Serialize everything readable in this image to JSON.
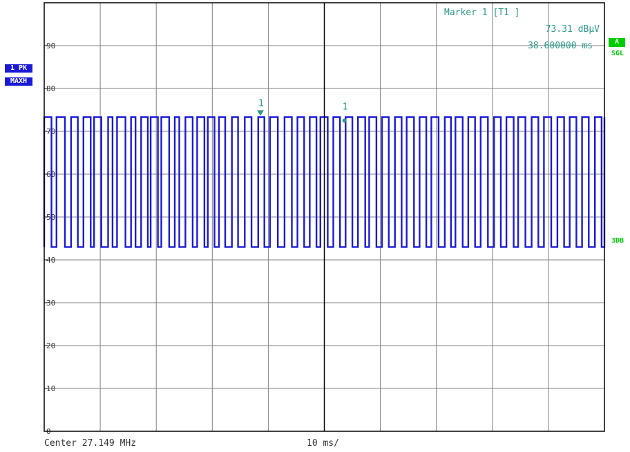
{
  "chart_data": {
    "type": "line",
    "title": "",
    "xlabel": "",
    "ylabel": "",
    "xlim": [
      0,
      100
    ],
    "ylim": [
      0,
      100
    ],
    "y_ticks": [
      0,
      10,
      20,
      30,
      40,
      50,
      60,
      70,
      80,
      90
    ],
    "y_tick_labels": [
      "0",
      "10",
      "20",
      "30",
      "40",
      "50",
      "60",
      "70",
      "80",
      "90"
    ],
    "grid": true,
    "x_units": "ms",
    "y_units": "dBµV",
    "series": [
      {
        "signal": "pulsed (on/off keyed) trace",
        "high_level": 73.3,
        "low_level": 43,
        "edges_ms": [
          0,
          1.3,
          2.2,
          3.7,
          4.8,
          6,
          7,
          8.3,
          8.9,
          10.2,
          11.4,
          12.2,
          13,
          14.5,
          15.5,
          16.3,
          17.3,
          18.5,
          19,
          20.3,
          20.9,
          22.3,
          23.3,
          24.1,
          25.2,
          26.5,
          27.3,
          28.6,
          29.2,
          30.4,
          31.2,
          32.3,
          33.5,
          34.6,
          35.8,
          37,
          38.2,
          39.3,
          40.3,
          41.7,
          42.9,
          44.2,
          45.2,
          46.4,
          47.4,
          48.6,
          49.3,
          50.6,
          51.6,
          52.8,
          53.8,
          55,
          56,
          57.3,
          58,
          59.3,
          60.3,
          61.5,
          62.6,
          63.8,
          64.7,
          66,
          67,
          68.2,
          69.1,
          70.4,
          71.5,
          72.6,
          73.4,
          74.7,
          75.7,
          76.9,
          77.9,
          79.2,
          80.3,
          81.5,
          82.5,
          83.8,
          84.6,
          85.9,
          87,
          88.2,
          89.2,
          90.5,
          91.6,
          92.8,
          93.8,
          95,
          96,
          97.2,
          98.3,
          99.5,
          100
        ],
        "markers": [
          {
            "label": "1",
            "shape": "triangle",
            "x": 38.6,
            "y": 73.31
          },
          {
            "label": "1",
            "shape": "dot",
            "x": 53.6,
            "y": 72.5
          }
        ]
      }
    ]
  },
  "marker_info": {
    "title": "Marker 1 [T1 ]",
    "level": "73.31 dBµV",
    "time": "38.600000 ms"
  },
  "footer": {
    "center": "Center 27.149 MHz",
    "sweep": "10 ms/"
  },
  "left_tags": {
    "trace": "1 PK",
    "mode": "MAXH"
  },
  "right_tags": {
    "trace_id": "A",
    "sweep": "SGL",
    "line": "3DB"
  },
  "colors": {
    "trace": "#1a1ad6",
    "grid": "#808080",
    "marker": "#2a9a8a",
    "marker_info": "#2a9a8a",
    "status_green": "#00cc00",
    "frame": "#000000"
  }
}
